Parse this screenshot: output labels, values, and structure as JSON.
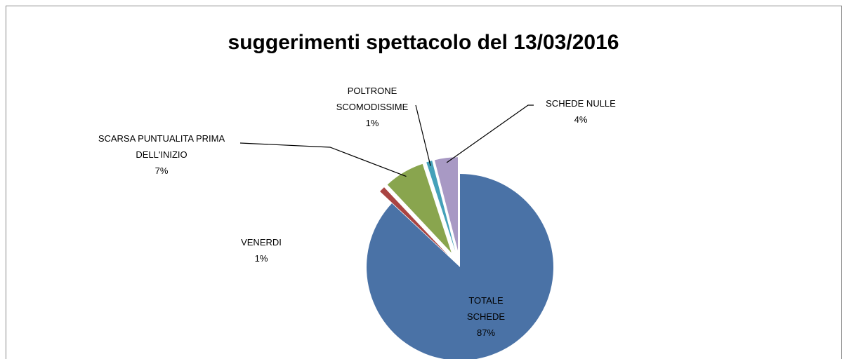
{
  "chart_data": {
    "type": "pie",
    "title": "suggerimenti spettacolo del 13/03/2016",
    "categories": [
      "TOTALE SCHEDE",
      "VENERDI",
      "SCARSA PUNTUALITA PRIMA DELL'INIZIO",
      "POLTRONE SCOMODISSIME",
      "SCHEDE NULLE"
    ],
    "values": [
      87,
      1,
      7,
      1,
      4
    ],
    "value_labels": [
      "87%",
      "1%",
      "7%",
      "1%",
      "4%"
    ],
    "colors": [
      "#4a72a6",
      "#a94442",
      "#89a54e",
      "#45a1b9",
      "#a899c4"
    ]
  }
}
